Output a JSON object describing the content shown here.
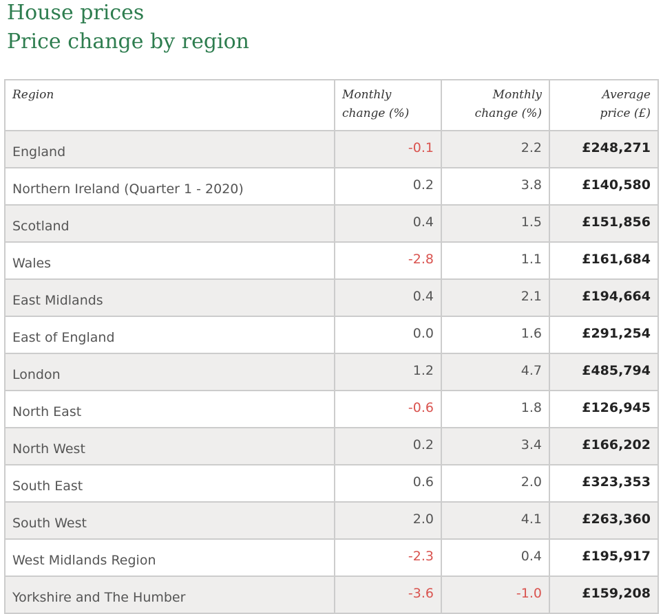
{
  "header": {
    "title": "House prices",
    "subtitle": "Price change by region"
  },
  "colors": {
    "accent": "#2e7d4f",
    "negative": "#d9534f",
    "row_shade": "#efeeed",
    "border": "#cccccc"
  },
  "table": {
    "columns": [
      {
        "line1": "Region",
        "line2": ""
      },
      {
        "line1": "Monthly",
        "line2": "change (%)"
      },
      {
        "line1": "Monthly",
        "line2": "change (%)"
      },
      {
        "line1": "Average",
        "line2": "price (£)"
      }
    ],
    "rows": [
      {
        "region": "England",
        "monthly_change_1": "-0.1",
        "monthly_change_2": "2.2",
        "average_price": "£248,271"
      },
      {
        "region": "Northern Ireland (Quarter 1 - 2020)",
        "monthly_change_1": "0.2",
        "monthly_change_2": "3.8",
        "average_price": "£140,580"
      },
      {
        "region": "Scotland",
        "monthly_change_1": "0.4",
        "monthly_change_2": "1.5",
        "average_price": "£151,856"
      },
      {
        "region": "Wales",
        "monthly_change_1": "-2.8",
        "monthly_change_2": "1.1",
        "average_price": "£161,684"
      },
      {
        "region": "East Midlands",
        "monthly_change_1": "0.4",
        "monthly_change_2": "2.1",
        "average_price": "£194,664"
      },
      {
        "region": "East of England",
        "monthly_change_1": "0.0",
        "monthly_change_2": "1.6",
        "average_price": "£291,254"
      },
      {
        "region": "London",
        "monthly_change_1": "1.2",
        "monthly_change_2": "4.7",
        "average_price": "£485,794"
      },
      {
        "region": "North East",
        "monthly_change_1": "-0.6",
        "monthly_change_2": "1.8",
        "average_price": "£126,945"
      },
      {
        "region": "North West",
        "monthly_change_1": "0.2",
        "monthly_change_2": "3.4",
        "average_price": "£166,202"
      },
      {
        "region": "South East",
        "monthly_change_1": "0.6",
        "monthly_change_2": "2.0",
        "average_price": "£323,353"
      },
      {
        "region": "South West",
        "monthly_change_1": "2.0",
        "monthly_change_2": "4.1",
        "average_price": "£263,360"
      },
      {
        "region": "West Midlands Region",
        "monthly_change_1": "-2.3",
        "monthly_change_2": "0.4",
        "average_price": "£195,917"
      },
      {
        "region": "Yorkshire and The Humber",
        "monthly_change_1": "-3.6",
        "monthly_change_2": "-1.0",
        "average_price": "£159,208"
      }
    ]
  }
}
